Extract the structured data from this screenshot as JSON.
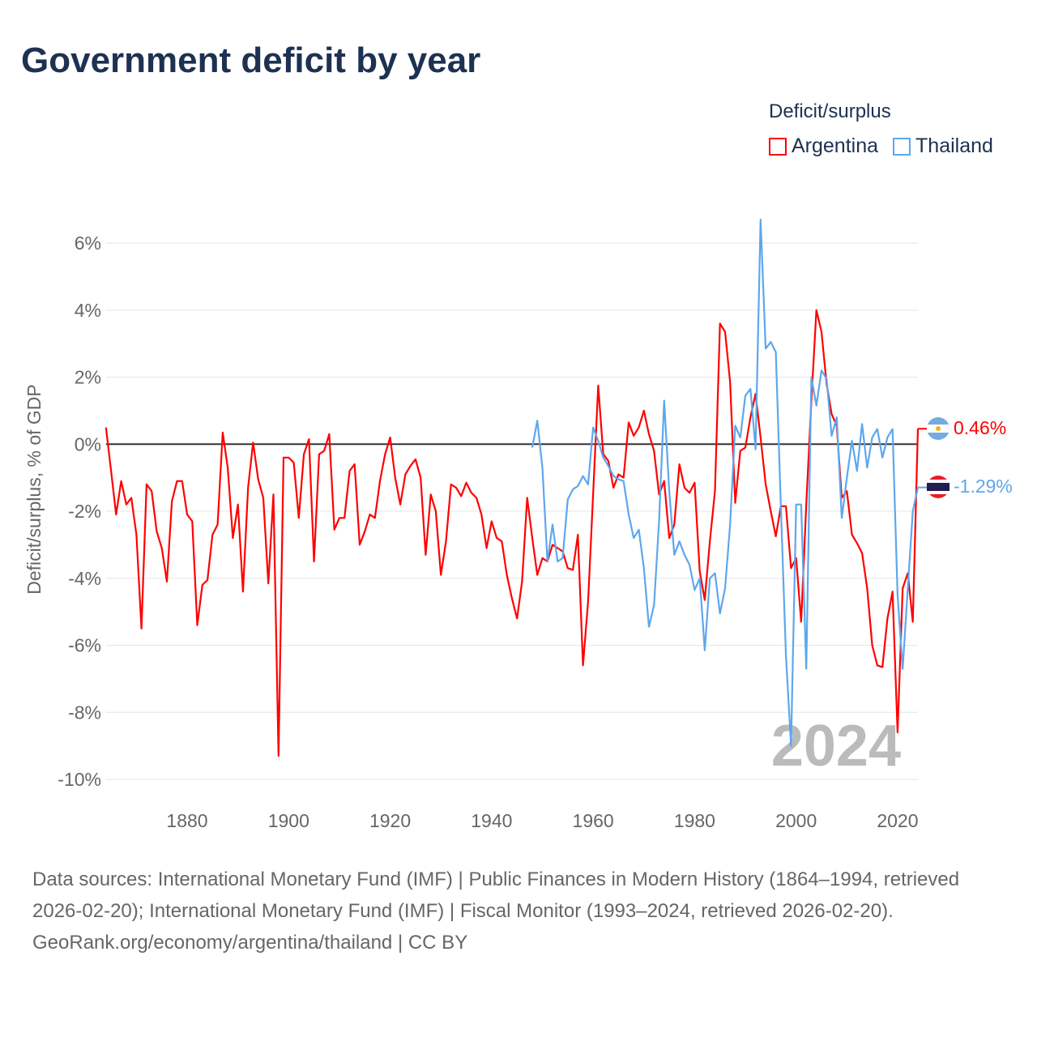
{
  "title": "Government deficit by year",
  "legend": {
    "title": "Deficit/surplus",
    "items": [
      {
        "label": "Argentina",
        "color": "#ff0000"
      },
      {
        "label": "Thailand",
        "color": "#5da7ee"
      }
    ]
  },
  "year_label": "2024",
  "end_labels": {
    "argentina": "0.46%",
    "thailand": "-1.29%"
  },
  "sources": "Data sources: International Monetary Fund (IMF) | Public Finances in Modern History (1864–1994, retrieved 2026-02-20); International Monetary Fund (IMF) | Fiscal Monitor (1993–2024, retrieved 2026-02-20).",
  "credit": "GeoRank.org/economy/argentina/thailand | CC BY",
  "chart_data": {
    "type": "line",
    "title": "Government deficit by year",
    "xlabel": "",
    "ylabel": "Deficit/surplus, % of GDP",
    "xlim": [
      1864,
      2024
    ],
    "ylim": [
      -10,
      6
    ],
    "grid": true,
    "legend_position": "top-right",
    "x_ticks": [
      1880,
      1900,
      1920,
      1940,
      1960,
      1980,
      2000,
      2020
    ],
    "y_ticks": [
      6,
      4,
      2,
      0,
      -2,
      -4,
      -6,
      -8,
      -10
    ],
    "y_tick_labels": [
      "6%",
      "4%",
      "2%",
      "0%",
      "-2%",
      "-4%",
      "-6%",
      "-8%",
      "-10%"
    ],
    "series": [
      {
        "name": "Argentina",
        "color": "#ff0000",
        "start_year": 1864,
        "values": [
          0.5,
          -0.8,
          -2.1,
          -1.1,
          -1.8,
          -1.6,
          -2.7,
          -5.5,
          -1.2,
          -1.4,
          -2.6,
          -3.1,
          -4.1,
          -1.7,
          -1.1,
          -1.1,
          -2.1,
          -2.3,
          -5.4,
          -4.2,
          -4.05,
          -2.7,
          -2.4,
          0.35,
          -0.7,
          -2.8,
          -1.8,
          -4.4,
          -1.3,
          0.05,
          -1.05,
          -1.6,
          -4.15,
          -1.5,
          -9.3,
          -0.4,
          -0.4,
          -0.55,
          -2.2,
          -0.3,
          0.15,
          -3.5,
          -0.3,
          -0.2,
          0.3,
          -2.55,
          -2.2,
          -2.2,
          -0.8,
          -0.6,
          -3.0,
          -2.6,
          -2.1,
          -2.2,
          -1.1,
          -0.3,
          0.2,
          -1.0,
          -1.8,
          -0.9,
          -0.65,
          -0.45,
          -1.0,
          -3.3,
          -1.5,
          -2.0,
          -3.9,
          -2.9,
          -1.2,
          -1.3,
          -1.55,
          -1.15,
          -1.45,
          -1.6,
          -2.1,
          -3.1,
          -2.3,
          -2.8,
          -2.9,
          -3.9,
          -4.6,
          -5.2,
          -4.1,
          -1.6,
          -2.8,
          -3.9,
          -3.4,
          -3.5,
          -3.0,
          -3.1,
          -3.2,
          -3.7,
          -3.75,
          -2.7,
          -6.6,
          -4.7,
          -1.5,
          1.75,
          -0.3,
          -0.5,
          -1.3,
          -0.9,
          -1.0,
          0.65,
          0.25,
          0.5,
          1.0,
          0.3,
          -0.2,
          -1.5,
          -1.1,
          -2.8,
          -2.4,
          -0.6,
          -1.3,
          -1.45,
          -1.15,
          -3.8,
          -4.65,
          -2.9,
          -1.4,
          3.6,
          3.35,
          1.85,
          -1.75,
          -0.2,
          -0.1,
          0.8,
          1.5,
          0.2,
          -1.2,
          -2.0,
          -2.75,
          -1.85,
          -1.85,
          -3.7,
          -3.4,
          -5.3,
          -1.8,
          1.3,
          4.0,
          3.35,
          1.8,
          0.9,
          0.55,
          -1.6,
          -1.4,
          -2.7,
          -2.95,
          -3.25,
          -4.3,
          -6.0,
          -6.6,
          -6.65,
          -5.2,
          -4.4,
          -8.6,
          -4.3,
          -3.85,
          -5.3,
          0.46
        ]
      },
      {
        "name": "Thailand",
        "color": "#5da7ee",
        "start_year": 1948,
        "values": [
          -0.1,
          0.7,
          -0.7,
          -3.5,
          -2.4,
          -3.5,
          -3.4,
          -1.65,
          -1.35,
          -1.25,
          -0.95,
          -1.2,
          0.5,
          0.1,
          -0.4,
          -0.65,
          -0.95,
          -1.05,
          -1.1,
          -2.1,
          -2.8,
          -2.55,
          -3.7,
          -5.45,
          -4.8,
          -2.3,
          1.3,
          -1.4,
          -3.3,
          -2.9,
          -3.3,
          -3.6,
          -4.35,
          -4.0,
          -6.15,
          -4.0,
          -3.85,
          -5.05,
          -4.3,
          -2.4,
          0.55,
          0.2,
          1.45,
          1.65,
          -0.15,
          6.7,
          2.85,
          3.05,
          2.75,
          -1.9,
          -6.3,
          -9.0,
          -1.8,
          -1.8,
          -6.7,
          2.0,
          1.15,
          2.2,
          1.95,
          0.25,
          0.8,
          -2.2,
          -1.0,
          0.1,
          -0.8,
          0.6,
          -0.7,
          0.2,
          0.45,
          -0.4,
          0.2,
          0.45,
          -4.5,
          -6.7,
          -4.3,
          -2.0,
          -1.29
        ]
      }
    ]
  }
}
